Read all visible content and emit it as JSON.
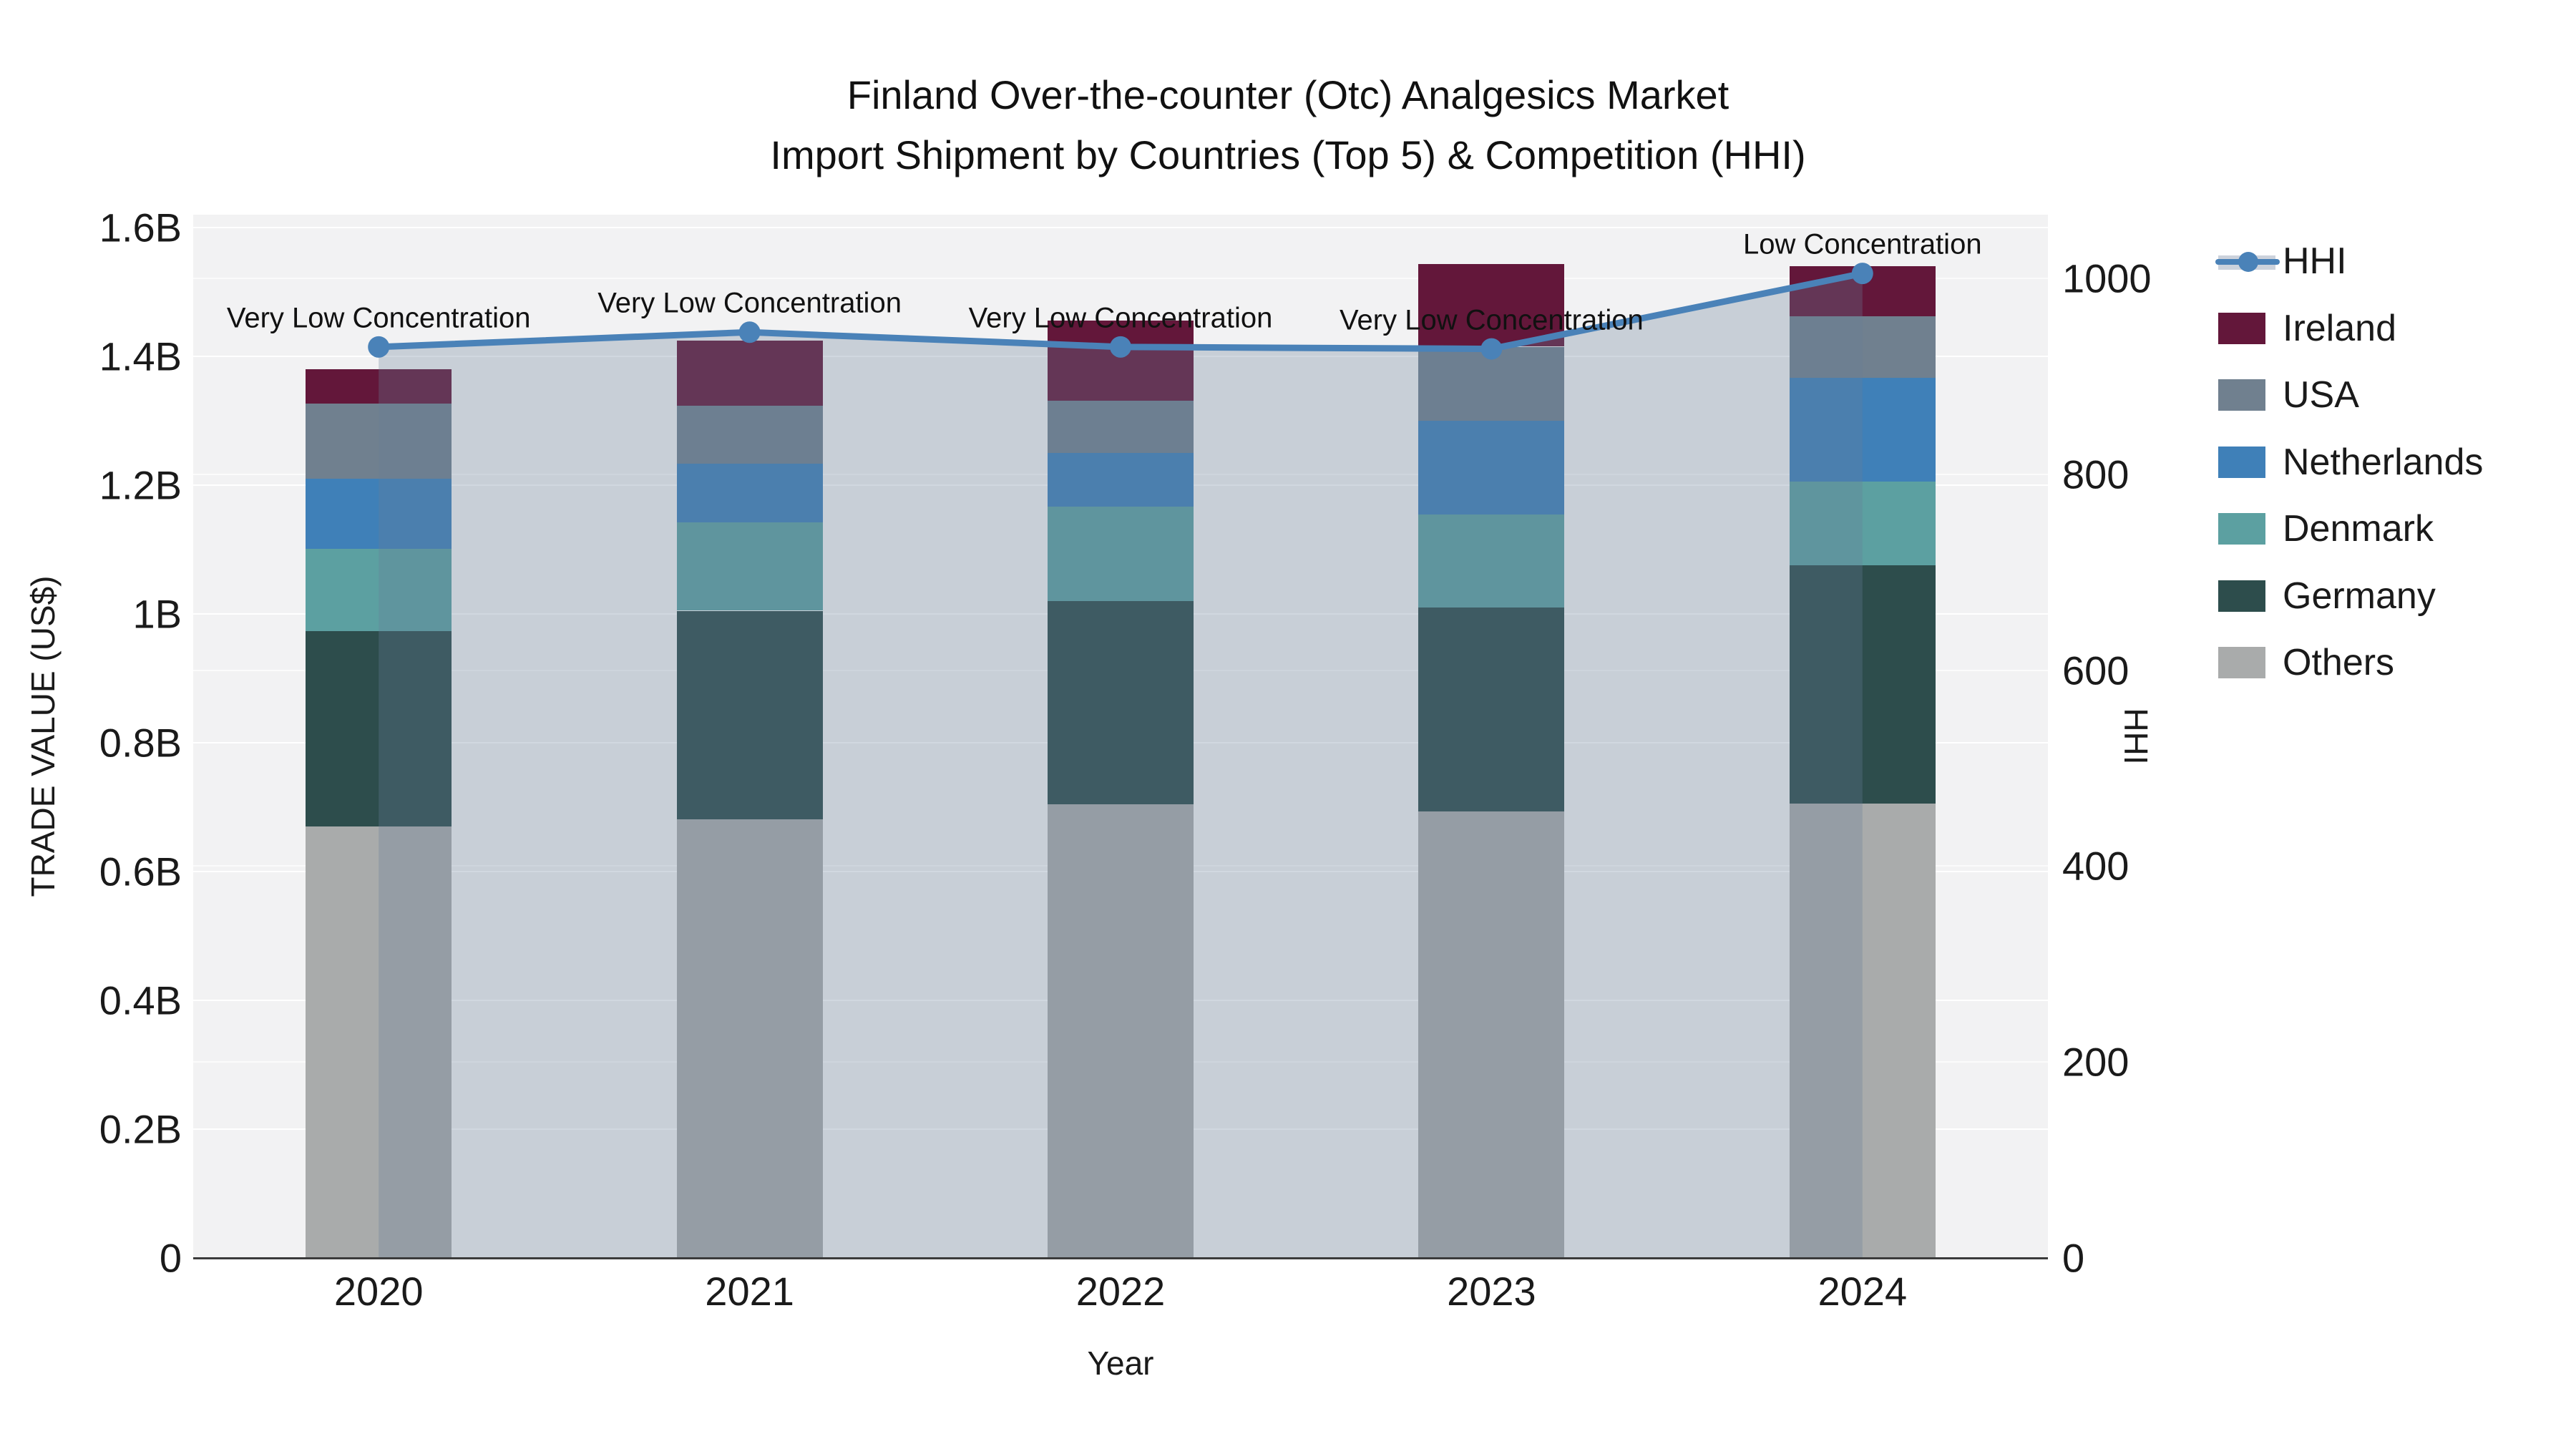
{
  "title": {
    "line1": "Finland Over-the-counter (Otc) Analgesics Market",
    "line2": "Import Shipment by Countries (Top 5) & Competition (HHI)"
  },
  "axes": {
    "y_left_title": "TRADE VALUE (US$)",
    "y_right_title": "HHI",
    "x_title": "Year",
    "y_left_ticks": [
      {
        "label": "0",
        "value": 0
      },
      {
        "label": "0.2B",
        "value": 0.2
      },
      {
        "label": "0.4B",
        "value": 0.4
      },
      {
        "label": "0.6B",
        "value": 0.6
      },
      {
        "label": "0.8B",
        "value": 0.8
      },
      {
        "label": "1B",
        "value": 1.0
      },
      {
        "label": "1.2B",
        "value": 1.2
      },
      {
        "label": "1.4B",
        "value": 1.4
      },
      {
        "label": "1.6B",
        "value": 1.6
      }
    ],
    "y_right_ticks": [
      {
        "label": "0",
        "value": 0
      },
      {
        "label": "200",
        "value": 200
      },
      {
        "label": "400",
        "value": 400
      },
      {
        "label": "600",
        "value": 600
      },
      {
        "label": "800",
        "value": 800
      },
      {
        "label": "1000",
        "value": 1000
      }
    ]
  },
  "legend_items": [
    {
      "label": "HHI",
      "type": "line",
      "color": "#4a82b8"
    },
    {
      "label": "Ireland",
      "type": "swatch",
      "color": "#63173a"
    },
    {
      "label": "USA",
      "type": "swatch",
      "color": "#70808f"
    },
    {
      "label": "Netherlands",
      "type": "swatch",
      "color": "#3f80b8"
    },
    {
      "label": "Denmark",
      "type": "swatch",
      "color": "#5ca0a1"
    },
    {
      "label": "Germany",
      "type": "swatch",
      "color": "#2d4d4c"
    },
    {
      "label": "Others",
      "type": "swatch",
      "color": "#a9abab"
    }
  ],
  "colors": {
    "hhi_line": "#4a82b8",
    "hhi_area_rgba": "rgba(104,125,153,0.30)",
    "plot_background": "#f2f2f3",
    "axis_line": "#3b3b3b"
  },
  "chart_data": {
    "type": "bar",
    "subtype": "stacked-bar-with-line",
    "categories": [
      "2020",
      "2021",
      "2022",
      "2023",
      "2024"
    ],
    "bar_unit": "billion US$",
    "ylabel_left": "TRADE VALUE (US$)",
    "ylabel_right": "HHI",
    "xlabel": "Year",
    "ylim_left": [
      0,
      1.6
    ],
    "ylim_right": [
      0,
      1068
    ],
    "grid": true,
    "legend_position": "right",
    "series": [
      {
        "name": "Others",
        "stack_order": 1,
        "color": "#a9abab",
        "values": [
          0.67,
          0.681,
          0.704,
          0.693,
          0.706
        ]
      },
      {
        "name": "Germany",
        "stack_order": 2,
        "color": "#2d4d4c",
        "values": [
          0.303,
          0.324,
          0.316,
          0.317,
          0.37
        ]
      },
      {
        "name": "Denmark",
        "stack_order": 3,
        "color": "#5ca0a1",
        "values": [
          0.128,
          0.137,
          0.147,
          0.145,
          0.13
        ]
      },
      {
        "name": "Netherlands",
        "stack_order": 4,
        "color": "#3f80b8",
        "values": [
          0.109,
          0.091,
          0.083,
          0.145,
          0.161
        ]
      },
      {
        "name": "USA",
        "stack_order": 5,
        "color": "#70808f",
        "values": [
          0.117,
          0.09,
          0.081,
          0.115,
          0.095
        ]
      },
      {
        "name": "Ireland",
        "stack_order": 6,
        "color": "#63173a",
        "values": [
          0.053,
          0.101,
          0.125,
          0.128,
          0.078
        ]
      }
    ],
    "bar_totals": [
      1.38,
      1.424,
      1.456,
      1.543,
      1.54
    ],
    "line_series": {
      "name": "HHI",
      "axis": "right",
      "values": [
        930,
        945,
        930,
        928,
        1005
      ]
    },
    "annotations": [
      {
        "category": "2020",
        "text": "Very Low Concentration"
      },
      {
        "category": "2021",
        "text": "Very Low Concentration"
      },
      {
        "category": "2022",
        "text": "Very Low Concentration"
      },
      {
        "category": "2023",
        "text": "Very Low Concentration"
      },
      {
        "category": "2024",
        "text": "Low Concentration"
      }
    ]
  }
}
